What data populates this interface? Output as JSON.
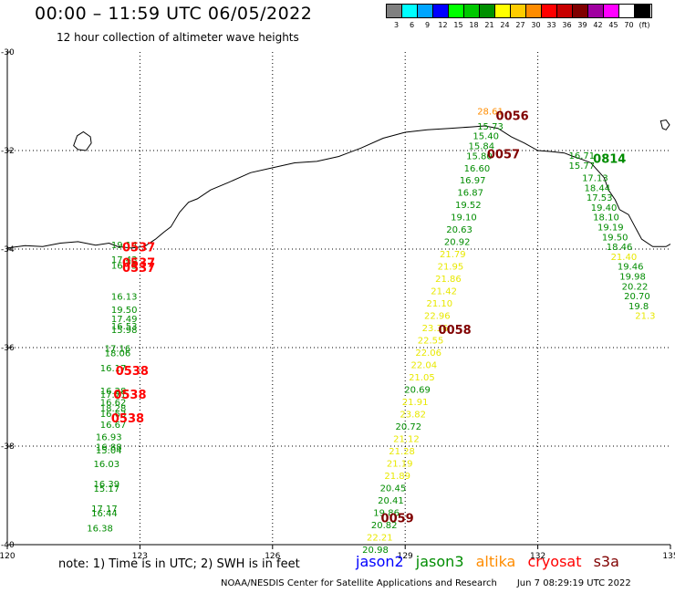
{
  "header": {
    "title": "00:00 – 11:59 UTC 06/05/2022",
    "subtitle": "12 hour collection of altimeter wave heights"
  },
  "legend": {
    "colors": [
      "#808080",
      "#00ffff",
      "#00a5ff",
      "#0000ff",
      "#00ff00",
      "#00c800",
      "#009000",
      "#ffff00",
      "#ffcc00",
      "#ff8c00",
      "#ff0000",
      "#c80000",
      "#800000",
      "#a000a0",
      "#ff00ff",
      "#ffffff",
      "#000000"
    ],
    "labels": [
      "3",
      "6",
      "9",
      "12",
      "15",
      "18",
      "21",
      "24",
      "27",
      "30",
      "33",
      "36",
      "39",
      "42",
      "45",
      "70",
      "(ft)"
    ]
  },
  "map": {
    "lon_min": 120,
    "lon_max": 135,
    "lat_min": -40,
    "lat_max": -30,
    "lon_labels": [
      "120",
      "123",
      "126",
      "129",
      "132",
      "135"
    ],
    "lat_labels": [
      "-30",
      "-32",
      "-34",
      "-36",
      "-38",
      "-40"
    ]
  },
  "colors": {
    "jason2": "#0000ff",
    "jason3": "#008c00",
    "altika": "#ff8c00",
    "cryosat": "#ff0000",
    "s3a": "#800000",
    "yellow": "#e8e800",
    "coast": "#000000"
  },
  "observations": [
    {
      "lon": 122.35,
      "lat": -33.98,
      "text": "19.14",
      "mission": "jason3",
      "size": 10
    },
    {
      "lon": 122.35,
      "lat": -34.28,
      "text": "17.43",
      "mission": "jason3",
      "size": 10
    },
    {
      "lon": 122.35,
      "lat": -34.4,
      "text": "16.75",
      "mission": "jason3",
      "size": 10
    },
    {
      "lon": 122.35,
      "lat": -35.03,
      "text": "16.13",
      "mission": "jason3",
      "size": 10
    },
    {
      "lon": 122.35,
      "lat": -35.3,
      "text": "19.50",
      "mission": "jason3",
      "size": 10
    },
    {
      "lon": 122.35,
      "lat": -35.48,
      "text": "17.49",
      "mission": "jason3",
      "size": 10
    },
    {
      "lon": 122.35,
      "lat": -35.63,
      "text": "16.53",
      "mission": "jason3",
      "size": 10
    },
    {
      "lon": 122.35,
      "lat": -35.7,
      "text": "15.98",
      "mission": "jason3",
      "size": 10
    },
    {
      "lon": 122.2,
      "lat": -36.08,
      "text": "17.16",
      "mission": "jason3",
      "size": 10
    },
    {
      "lon": 122.2,
      "lat": -36.18,
      "text": "18.06",
      "mission": "jason3",
      "size": 10
    },
    {
      "lon": 122.1,
      "lat": -36.48,
      "text": "16.17",
      "mission": "jason3",
      "size": 10
    },
    {
      "lon": 122.1,
      "lat": -36.94,
      "text": "16.28",
      "mission": "jason3",
      "size": 10
    },
    {
      "lon": 122.1,
      "lat": -37.02,
      "text": "17.71",
      "mission": "jason3",
      "size": 10
    },
    {
      "lon": 122.1,
      "lat": -37.18,
      "text": "16.62",
      "mission": "jason3",
      "size": 10
    },
    {
      "lon": 122.1,
      "lat": -37.3,
      "text": "18.28",
      "mission": "jason3",
      "size": 10
    },
    {
      "lon": 122.1,
      "lat": -37.41,
      "text": "16.63",
      "mission": "jason3",
      "size": 10
    },
    {
      "lon": 122.1,
      "lat": -37.63,
      "text": "16.67",
      "mission": "jason3",
      "size": 10
    },
    {
      "lon": 122.0,
      "lat": -37.88,
      "text": "16.93",
      "mission": "jason3",
      "size": 10
    },
    {
      "lon": 122.0,
      "lat": -38.08,
      "text": "16.88",
      "mission": "jason3",
      "size": 10
    },
    {
      "lon": 122.0,
      "lat": -38.15,
      "text": "15.04",
      "mission": "jason3",
      "size": 10
    },
    {
      "lon": 121.95,
      "lat": -38.43,
      "text": "16.03",
      "mission": "jason3",
      "size": 10
    },
    {
      "lon": 121.95,
      "lat": -38.83,
      "text": "16.39",
      "mission": "jason3",
      "size": 10
    },
    {
      "lon": 121.95,
      "lat": -38.93,
      "text": "15.17",
      "mission": "jason3",
      "size": 10
    },
    {
      "lon": 121.9,
      "lat": -39.33,
      "text": "17.17",
      "mission": "jason3",
      "size": 10
    },
    {
      "lon": 121.9,
      "lat": -39.43,
      "text": "16.44",
      "mission": "jason3",
      "size": 10
    },
    {
      "lon": 121.8,
      "lat": -39.73,
      "text": "16.38",
      "mission": "jason3",
      "size": 10
    },
    {
      "lon": 130.63,
      "lat": -31.27,
      "text": "28.61",
      "mission": "altika",
      "size": 10
    },
    {
      "lon": 130.63,
      "lat": -31.57,
      "text": "15.73",
      "mission": "jason3",
      "size": 10
    },
    {
      "lon": 130.53,
      "lat": -31.77,
      "text": "15.40",
      "mission": "jason3",
      "size": 10
    },
    {
      "lon": 130.43,
      "lat": -31.97,
      "text": "15.84",
      "mission": "jason3",
      "size": 10
    },
    {
      "lon": 130.38,
      "lat": -32.18,
      "text": "15.80",
      "mission": "jason3",
      "size": 10
    },
    {
      "lon": 130.33,
      "lat": -32.43,
      "text": "16.60",
      "mission": "jason3",
      "size": 10
    },
    {
      "lon": 130.23,
      "lat": -32.67,
      "text": "16.97",
      "mission": "jason3",
      "size": 10
    },
    {
      "lon": 130.18,
      "lat": -32.92,
      "text": "16.87",
      "mission": "jason3",
      "size": 10
    },
    {
      "lon": 130.13,
      "lat": -33.17,
      "text": "19.52",
      "mission": "jason3",
      "size": 10
    },
    {
      "lon": 130.03,
      "lat": -33.42,
      "text": "19.10",
      "mission": "jason3",
      "size": 10
    },
    {
      "lon": 129.93,
      "lat": -33.67,
      "text": "20.63",
      "mission": "jason3",
      "size": 10
    },
    {
      "lon": 129.88,
      "lat": -33.92,
      "text": "20.92",
      "mission": "jason3",
      "size": 10
    },
    {
      "lon": 129.78,
      "lat": -34.17,
      "text": "21.79",
      "mission": "yellow",
      "size": 10
    },
    {
      "lon": 129.73,
      "lat": -34.42,
      "text": "21.95",
      "mission": "yellow",
      "size": 10
    },
    {
      "lon": 129.68,
      "lat": -34.67,
      "text": "21.86",
      "mission": "yellow",
      "size": 10
    },
    {
      "lon": 129.58,
      "lat": -34.92,
      "text": "21.42",
      "mission": "yellow",
      "size": 10
    },
    {
      "lon": 129.48,
      "lat": -35.17,
      "text": "21.10",
      "mission": "yellow",
      "size": 10
    },
    {
      "lon": 129.43,
      "lat": -35.42,
      "text": "22.96",
      "mission": "yellow",
      "size": 10
    },
    {
      "lon": 129.38,
      "lat": -35.67,
      "text": "23.36",
      "mission": "yellow",
      "size": 10
    },
    {
      "lon": 129.28,
      "lat": -35.92,
      "text": "22.55",
      "mission": "yellow",
      "size": 10
    },
    {
      "lon": 129.23,
      "lat": -36.17,
      "text": "22.06",
      "mission": "yellow",
      "size": 10
    },
    {
      "lon": 129.13,
      "lat": -36.42,
      "text": "22.04",
      "mission": "yellow",
      "size": 10
    },
    {
      "lon": 129.08,
      "lat": -36.67,
      "text": "21.05",
      "mission": "yellow",
      "size": 10
    },
    {
      "lon": 128.98,
      "lat": -36.92,
      "text": "20.69",
      "mission": "jason3",
      "size": 10
    },
    {
      "lon": 128.93,
      "lat": -37.17,
      "text": "21.91",
      "mission": "yellow",
      "size": 10
    },
    {
      "lon": 128.88,
      "lat": -37.42,
      "text": "23.82",
      "mission": "yellow",
      "size": 10
    },
    {
      "lon": 128.78,
      "lat": -37.67,
      "text": "20.72",
      "mission": "jason3",
      "size": 10
    },
    {
      "lon": 128.73,
      "lat": -37.92,
      "text": "21.12",
      "mission": "yellow",
      "size": 10
    },
    {
      "lon": 128.63,
      "lat": -38.17,
      "text": "21.28",
      "mission": "yellow",
      "size": 10
    },
    {
      "lon": 128.58,
      "lat": -38.42,
      "text": "21.19",
      "mission": "yellow",
      "size": 10
    },
    {
      "lon": 128.53,
      "lat": -38.67,
      "text": "21.89",
      "mission": "yellow",
      "size": 10
    },
    {
      "lon": 128.43,
      "lat": -38.92,
      "text": "20.45",
      "mission": "jason3",
      "size": 10
    },
    {
      "lon": 128.38,
      "lat": -39.17,
      "text": "20.41",
      "mission": "jason3",
      "size": 10
    },
    {
      "lon": 128.28,
      "lat": -39.42,
      "text": "19.86",
      "mission": "jason3",
      "size": 10
    },
    {
      "lon": 128.23,
      "lat": -39.67,
      "text": "20.82",
      "mission": "jason3",
      "size": 10
    },
    {
      "lon": 128.13,
      "lat": -39.92,
      "text": "22.21",
      "mission": "yellow",
      "size": 10
    },
    {
      "lon": 128.03,
      "lat": -40.17,
      "text": "20.98",
      "mission": "jason3",
      "size": 10
    },
    {
      "lon": 132.7,
      "lat": -32.17,
      "text": "16.71",
      "mission": "jason3",
      "size": 10
    },
    {
      "lon": 132.7,
      "lat": -32.37,
      "text": "15.77",
      "mission": "jason3",
      "size": 10
    },
    {
      "lon": 133.0,
      "lat": -32.62,
      "text": "17.13",
      "mission": "jason3",
      "size": 10
    },
    {
      "lon": 133.05,
      "lat": -32.82,
      "text": "18.44",
      "mission": "jason3",
      "size": 10
    },
    {
      "lon": 133.1,
      "lat": -33.02,
      "text": "17.53",
      "mission": "jason3",
      "size": 10
    },
    {
      "lon": 133.2,
      "lat": -33.22,
      "text": "19.40",
      "mission": "jason3",
      "size": 10
    },
    {
      "lon": 133.25,
      "lat": -33.42,
      "text": "18.10",
      "mission": "jason3",
      "size": 10
    },
    {
      "lon": 133.35,
      "lat": -33.62,
      "text": "19.19",
      "mission": "jason3",
      "size": 10
    },
    {
      "lon": 133.45,
      "lat": -33.82,
      "text": "19.50",
      "mission": "jason3",
      "size": 10
    },
    {
      "lon": 133.55,
      "lat": -34.02,
      "text": "18.46",
      "mission": "jason3",
      "size": 10
    },
    {
      "lon": 133.65,
      "lat": -34.22,
      "text": "21.40",
      "mission": "yellow",
      "size": 10
    },
    {
      "lon": 133.8,
      "lat": -34.42,
      "text": "19.46",
      "mission": "jason3",
      "size": 10
    },
    {
      "lon": 133.85,
      "lat": -34.62,
      "text": "19.98",
      "mission": "jason3",
      "size": 10
    },
    {
      "lon": 133.9,
      "lat": -34.82,
      "text": "20.22",
      "mission": "jason3",
      "size": 10
    },
    {
      "lon": 133.95,
      "lat": -35.02,
      "text": "20.70",
      "mission": "jason3",
      "size": 10
    },
    {
      "lon": 134.05,
      "lat": -35.22,
      "text": "19.8",
      "mission": "jason3",
      "size": 10
    },
    {
      "lon": 134.2,
      "lat": -35.42,
      "text": "21.3",
      "mission": "yellow",
      "size": 10
    }
  ],
  "time_labels": [
    {
      "lon": 122.6,
      "lat": -34.05,
      "text": "0537",
      "mission": "cryosat",
      "size": 13
    },
    {
      "lon": 122.6,
      "lat": -34.36,
      "text": "0537",
      "mission": "cryosat",
      "size": 13
    },
    {
      "lon": 122.6,
      "lat": -34.46,
      "text": "0537",
      "mission": "cryosat",
      "size": 13
    },
    {
      "lon": 122.45,
      "lat": -36.56,
      "text": "0538",
      "mission": "cryosat",
      "size": 13
    },
    {
      "lon": 122.4,
      "lat": -37.04,
      "text": "0538",
      "mission": "cryosat",
      "size": 13
    },
    {
      "lon": 122.35,
      "lat": -37.52,
      "text": "0538",
      "mission": "cryosat",
      "size": 13
    },
    {
      "lon": 131.05,
      "lat": -31.38,
      "text": "0056",
      "mission": "s3a",
      "size": 13
    },
    {
      "lon": 130.85,
      "lat": -32.16,
      "text": "0057",
      "mission": "s3a",
      "size": 13
    },
    {
      "lon": 129.75,
      "lat": -35.72,
      "text": "0058",
      "mission": "s3a",
      "size": 13
    },
    {
      "lon": 128.45,
      "lat": -39.55,
      "text": "0059",
      "mission": "s3a",
      "size": 13
    },
    {
      "lon": 133.25,
      "lat": -32.25,
      "text": "0814",
      "mission": "jason3",
      "size": 13
    }
  ],
  "footer": {
    "note": "note:  1) Time is in UTC;  2) SWH is in feet",
    "missions": [
      "jason2",
      "jason3",
      "altika",
      "cryosat",
      "s3a"
    ],
    "credit": "NOAA/NESDIS Center for Satellite Applications and Research",
    "timestamp": "Jun  7 08:29:19 UTC 2022"
  }
}
